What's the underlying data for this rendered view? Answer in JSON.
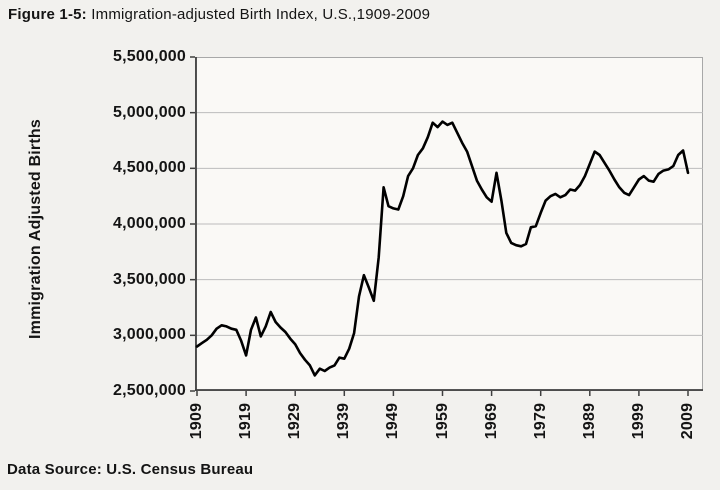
{
  "figure": {
    "label": "Figure 1-5:",
    "title": " Immigration-adjusted Birth Index, U.S.,1909-2009"
  },
  "source": "Data Source: U.S. Census Bureau",
  "colors": {
    "line": "#000000",
    "grid": "#bcbcbc",
    "axis": "#3f3f3f",
    "frame": "#a8a8a8",
    "text": "#141414",
    "page_bg": "#f2f1ee",
    "plot_bg": "#faf9f6"
  },
  "chart_data": {
    "type": "line",
    "title": "Figure 1-5: Immigration-adjusted Birth Index, U.S., 1909-2009",
    "xlabel": "",
    "ylabel": "Immigration Adjusted Births",
    "legend_position": "none",
    "grid": true,
    "xlim": [
      1909,
      2009
    ],
    "ylim": [
      2500000,
      5500000
    ],
    "x_ticks": [
      1909,
      1919,
      1929,
      1939,
      1949,
      1959,
      1969,
      1979,
      1989,
      1999,
      2009
    ],
    "y_ticks": [
      {
        "value": 5500000,
        "label": "5,500,000"
      },
      {
        "value": 5000000,
        "label": "5,000,000"
      },
      {
        "value": 4500000,
        "label": "4,500,000"
      },
      {
        "value": 4000000,
        "label": "4,000,000"
      },
      {
        "value": 3500000,
        "label": "3,500,000"
      },
      {
        "value": 3000000,
        "label": "3,000,000"
      },
      {
        "value": 2500000,
        "label": "2,500,000"
      }
    ],
    "series_name": "Immigration Adjusted Births",
    "x": [
      1909,
      1910,
      1911,
      1912,
      1913,
      1914,
      1915,
      1916,
      1917,
      1918,
      1919,
      1920,
      1921,
      1922,
      1923,
      1924,
      1925,
      1926,
      1927,
      1928,
      1929,
      1930,
      1931,
      1932,
      1933,
      1934,
      1935,
      1936,
      1937,
      1938,
      1939,
      1940,
      1941,
      1942,
      1943,
      1944,
      1945,
      1946,
      1947,
      1948,
      1949,
      1950,
      1951,
      1952,
      1953,
      1954,
      1955,
      1956,
      1957,
      1958,
      1959,
      1960,
      1961,
      1962,
      1963,
      1964,
      1965,
      1966,
      1967,
      1968,
      1969,
      1970,
      1971,
      1972,
      1973,
      1974,
      1975,
      1976,
      1977,
      1978,
      1979,
      1980,
      1981,
      1982,
      1983,
      1984,
      1985,
      1986,
      1987,
      1988,
      1989,
      1990,
      1991,
      1992,
      1993,
      1994,
      1995,
      1996,
      1997,
      1998,
      1999,
      2000,
      2001,
      2002,
      2003,
      2004,
      2005,
      2006,
      2007,
      2008,
      2009
    ],
    "values": [
      2900000,
      2930000,
      2960000,
      3000000,
      3060000,
      3090000,
      3080000,
      3060000,
      3050000,
      2950000,
      2820000,
      3050000,
      3160000,
      2990000,
      3080000,
      3210000,
      3120000,
      3070000,
      3030000,
      2970000,
      2920000,
      2840000,
      2780000,
      2730000,
      2640000,
      2700000,
      2680000,
      2710000,
      2730000,
      2800000,
      2790000,
      2880000,
      3020000,
      3350000,
      3540000,
      3430000,
      3310000,
      3700000,
      4330000,
      4160000,
      4140000,
      4130000,
      4250000,
      4430000,
      4500000,
      4620000,
      4680000,
      4780000,
      4910000,
      4870000,
      4920000,
      4890000,
      4910000,
      4820000,
      4730000,
      4650000,
      4520000,
      4390000,
      4310000,
      4240000,
      4200000,
      4460000,
      4210000,
      3920000,
      3830000,
      3810000,
      3800000,
      3820000,
      3970000,
      3980000,
      4100000,
      4210000,
      4250000,
      4270000,
      4240000,
      4260000,
      4310000,
      4300000,
      4350000,
      4430000,
      4540000,
      4650000,
      4620000,
      4550000,
      4480000,
      4400000,
      4330000,
      4280000,
      4260000,
      4330000,
      4400000,
      4430000,
      4390000,
      4380000,
      4450000,
      4480000,
      4490000,
      4520000,
      4620000,
      4660000,
      4460000
    ]
  }
}
